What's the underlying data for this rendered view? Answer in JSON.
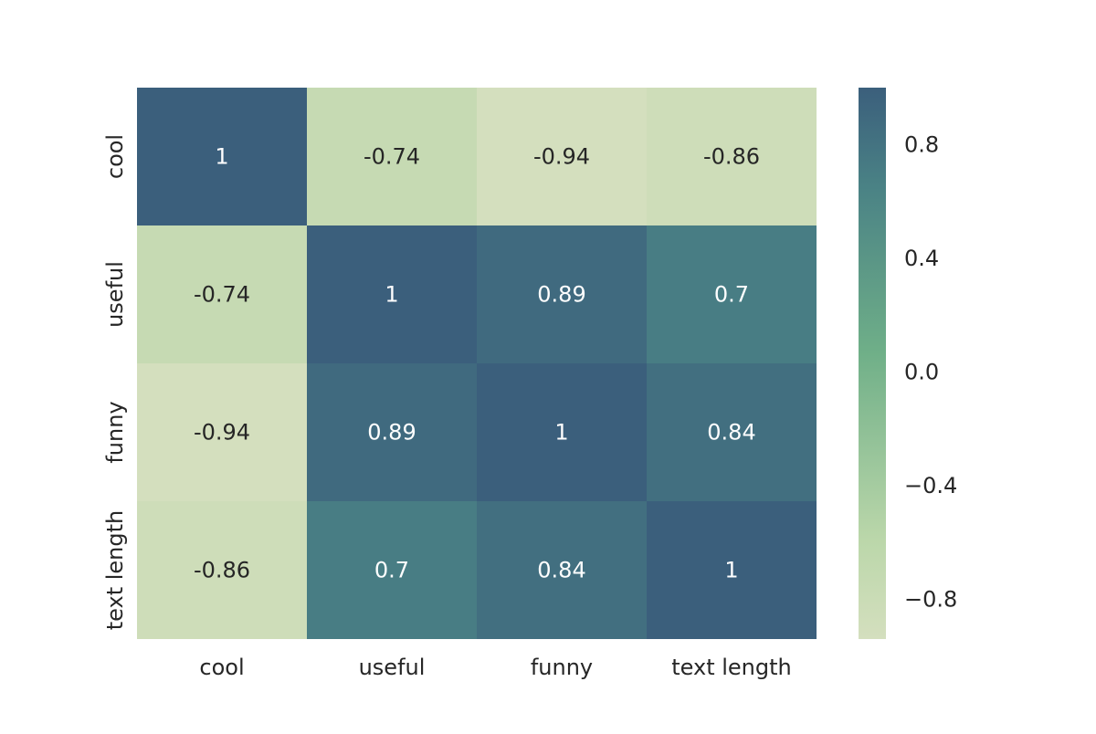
{
  "chart_data": {
    "type": "heatmap",
    "title": "",
    "xlabel": "",
    "ylabel": "",
    "x_labels": [
      "cool",
      "useful",
      "funny",
      "text length"
    ],
    "y_labels": [
      "cool",
      "useful",
      "funny",
      "text length"
    ],
    "values": [
      [
        1,
        -0.74,
        -0.94,
        -0.86
      ],
      [
        -0.74,
        1,
        0.89,
        0.7
      ],
      [
        -0.94,
        0.89,
        1,
        0.84
      ],
      [
        -0.86,
        0.7,
        0.84,
        1
      ]
    ],
    "annotations": [
      [
        "1",
        "-0.74",
        "-0.94",
        "-0.86"
      ],
      [
        "-0.74",
        "1",
        "0.89",
        "0.7"
      ],
      [
        "-0.94",
        "0.89",
        "1",
        "0.84"
      ],
      [
        "-0.86",
        "0.7",
        "0.84",
        "1"
      ]
    ],
    "colorbar": {
      "range": [
        -0.94,
        1
      ],
      "ticks": [
        0.8,
        0.4,
        0.0,
        -0.4,
        -0.8
      ],
      "tick_labels": [
        "0.8",
        "0.4",
        "0.0",
        "−0.4",
        "−0.8"
      ],
      "colors": {
        "low": "#d4dfbe",
        "mid_low": "#bbd7aa",
        "mid": "#6faf88",
        "mid_high": "#4a8285",
        "high": "#3b5f7c"
      }
    },
    "grid": false,
    "legend": "right"
  }
}
